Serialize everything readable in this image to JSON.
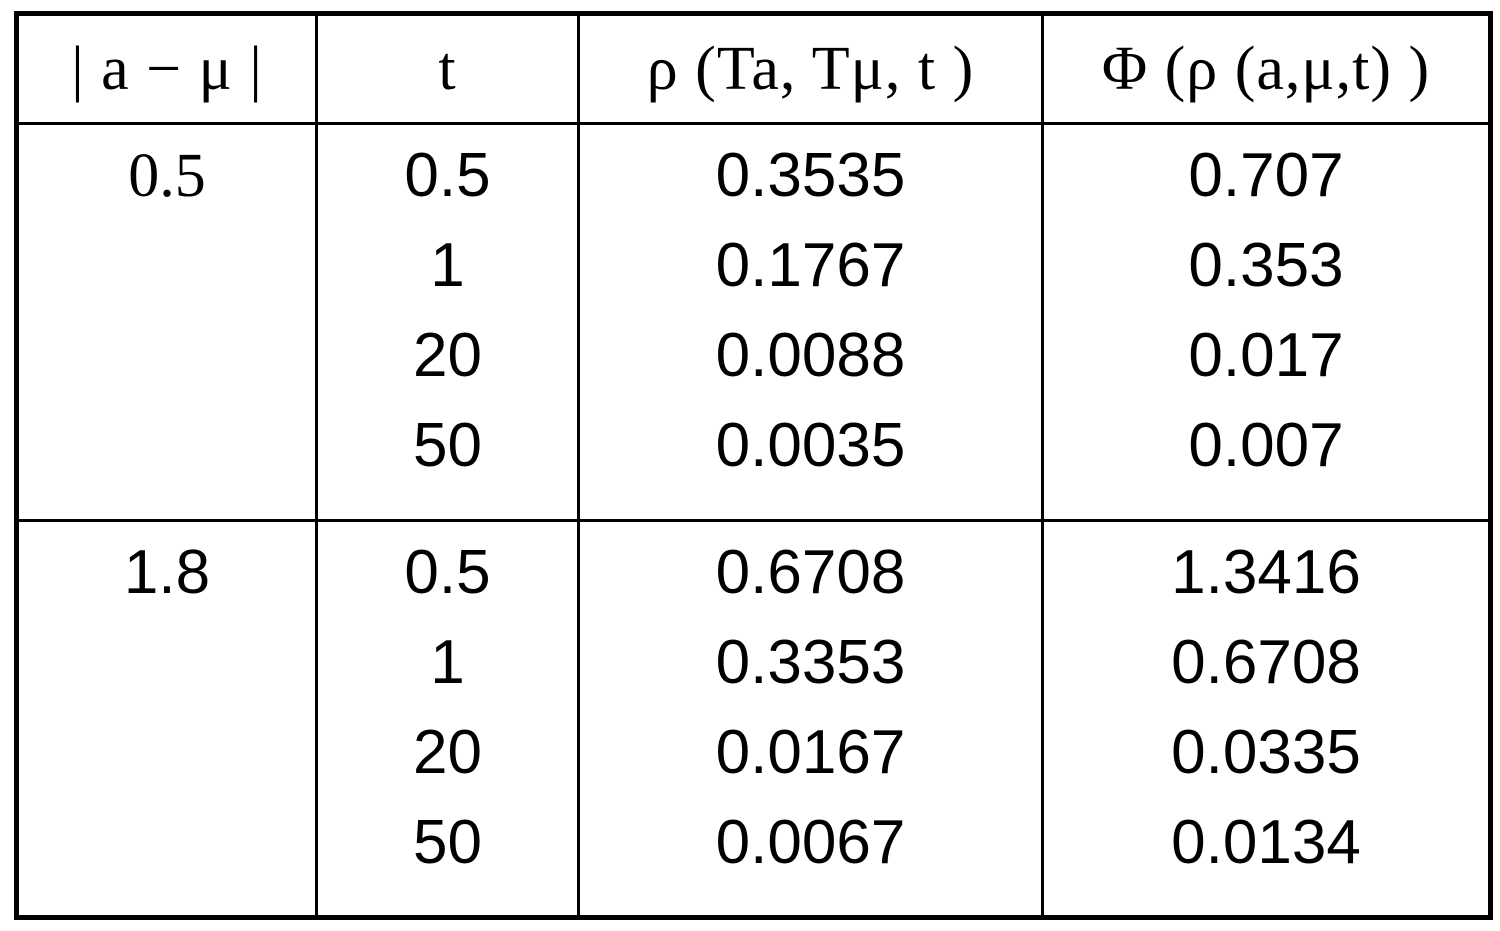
{
  "table": {
    "headers": [
      "| a − μ |",
      "t",
      "ρ (Ta, Tμ, t )",
      "Φ (ρ (a,μ,t) )"
    ],
    "groups": [
      {
        "a_mu": "0.5",
        "rows": [
          {
            "t": "0.5",
            "rho": "0.3535",
            "phi": "0.707"
          },
          {
            "t": "1",
            "rho": "0.1767",
            "phi": "0.353"
          },
          {
            "t": "20",
            "rho": "0.0088",
            "phi": "0.017"
          },
          {
            "t": "50",
            "rho": "0.0035",
            "phi": "0.007"
          }
        ]
      },
      {
        "a_mu": "1.8",
        "rows": [
          {
            "t": "0.5",
            "rho": "0.6708",
            "phi": "1.3416"
          },
          {
            "t": "1",
            "rho": "0.3353",
            "phi": "0.6708"
          },
          {
            "t": "20",
            "rho": "0.0167",
            "phi": "0.0335"
          },
          {
            "t": "50",
            "rho": "0.0067",
            "phi": "0.0134"
          }
        ]
      }
    ]
  },
  "chart_data": {
    "type": "table",
    "title": "",
    "columns": [
      "| a − μ |",
      "t",
      "ρ (Ta, Tμ, t )",
      "Φ (ρ (a,μ,t) )"
    ],
    "rows": [
      [
        "0.5",
        "0.5",
        "0.3535",
        "0.707"
      ],
      [
        "",
        "1",
        "0.1767",
        "0.353"
      ],
      [
        "",
        "20",
        "0.0088",
        "0.017"
      ],
      [
        "",
        "50",
        "0.0035",
        "0.007"
      ],
      [
        "1.8",
        "0.5",
        "0.6708",
        "1.3416"
      ],
      [
        "",
        "1",
        "0.3353",
        "0.6708"
      ],
      [
        "",
        "20",
        "0.0167",
        "0.0335"
      ],
      [
        "",
        "50",
        "0.0067",
        "0.0134"
      ]
    ],
    "layout_hints": {
      "grid": "on",
      "header_font": "serif",
      "body_font": "sans-serif",
      "border_color": "#000000",
      "background_color": "#ffffff"
    }
  }
}
